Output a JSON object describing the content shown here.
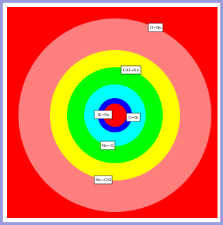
{
  "colors": {
    "page_border": "#9999dd",
    "background": "#ff0000",
    "shell_h_he": "#ff7f7f",
    "shell_he_co": "#ffff00",
    "shell_co_ne": "#00ff00",
    "shell_ne_o": "#00ffff",
    "shell_o_si": "#0000ff",
    "core_si_fe": "#ff0000",
    "label_background": "#ffffff",
    "label_text": "#000000"
  },
  "labels": {
    "h_he": "H→He",
    "c_o_ne": "C/O→Ne",
    "si_fe": "Si→Fe",
    "o_si": "O→Si",
    "ne_o": "Ne→O",
    "he_c_o": "He→C/O"
  }
}
